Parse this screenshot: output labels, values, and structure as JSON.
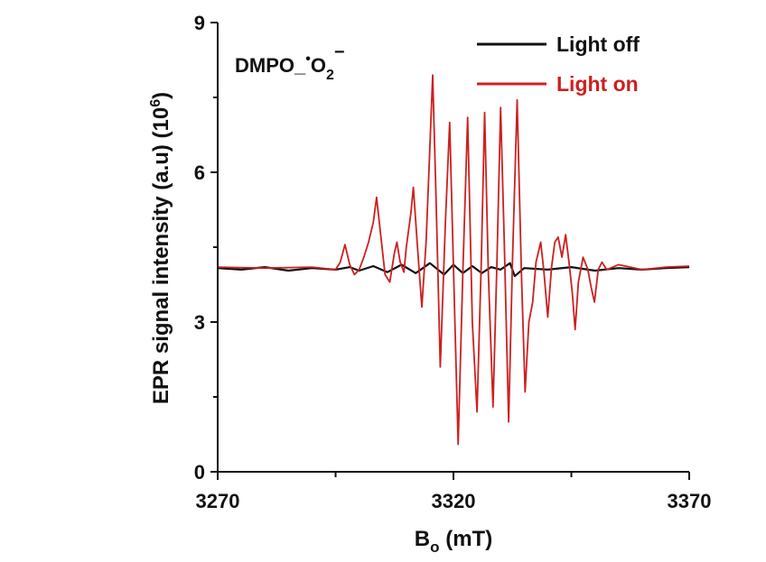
{
  "chart_data": {
    "type": "line",
    "annotation": {
      "text": "DMPO_",
      "radical": "•",
      "species": "O",
      "subscript": "2",
      "superscript": "−"
    },
    "xlabel": {
      "main": "B",
      "sub": "o",
      "unit": " (mT)"
    },
    "ylabel": {
      "main": "EPR signal intensity (a.u) (10",
      "sup": "6",
      "close": ")"
    },
    "xlim": [
      3270,
      3370
    ],
    "ylim": [
      0,
      9
    ],
    "xticks": [
      3270,
      3320,
      3370
    ],
    "yticks": [
      0,
      3,
      6,
      9
    ],
    "xtick_labels": [
      "3270",
      "3320",
      "3370"
    ],
    "ytick_labels": [
      "0",
      "3",
      "6",
      "9"
    ],
    "grid": false,
    "legend_position": "top-right",
    "series": [
      {
        "name": "Light off",
        "color": "#111111",
        "points": [
          [
            3270,
            4.08
          ],
          [
            3275,
            4.05
          ],
          [
            3280,
            4.1
          ],
          [
            3285,
            4.03
          ],
          [
            3290,
            4.08
          ],
          [
            3295,
            4.05
          ],
          [
            3298,
            4.1
          ],
          [
            3300,
            4.03
          ],
          [
            3303,
            4.12
          ],
          [
            3306,
            4.0
          ],
          [
            3309,
            4.15
          ],
          [
            3312,
            3.98
          ],
          [
            3315,
            4.18
          ],
          [
            3318,
            3.95
          ],
          [
            3320,
            4.15
          ],
          [
            3322,
            3.98
          ],
          [
            3324,
            4.12
          ],
          [
            3326,
            3.98
          ],
          [
            3328,
            4.1
          ],
          [
            3330,
            4.05
          ],
          [
            3332,
            4.18
          ],
          [
            3333,
            3.92
          ],
          [
            3335,
            4.08
          ],
          [
            3340,
            4.05
          ],
          [
            3345,
            4.1
          ],
          [
            3350,
            4.03
          ],
          [
            3355,
            4.08
          ],
          [
            3360,
            4.05
          ],
          [
            3365,
            4.08
          ],
          [
            3370,
            4.1
          ]
        ]
      },
      {
        "name": "Light on",
        "color": "#cc2020",
        "points": [
          [
            3270,
            4.1
          ],
          [
            3280,
            4.08
          ],
          [
            3290,
            4.1
          ],
          [
            3295,
            4.05
          ],
          [
            3296,
            4.2
          ],
          [
            3297,
            4.55
          ],
          [
            3298,
            4.15
          ],
          [
            3299,
            3.95
          ],
          [
            3300,
            4.05
          ],
          [
            3301,
            4.3
          ],
          [
            3302,
            4.6
          ],
          [
            3303,
            5.0
          ],
          [
            3303.7,
            5.5
          ],
          [
            3304.5,
            4.8
          ],
          [
            3305.5,
            3.95
          ],
          [
            3306.5,
            3.8
          ],
          [
            3307.5,
            4.4
          ],
          [
            3308,
            4.6
          ],
          [
            3308.7,
            4.2
          ],
          [
            3309.5,
            4.0
          ],
          [
            3310,
            4.5
          ],
          [
            3311,
            5.2
          ],
          [
            3311.5,
            5.7
          ],
          [
            3312.3,
            4.6
          ],
          [
            3313.3,
            3.3
          ],
          [
            3314.2,
            4.6
          ],
          [
            3315,
            6.5
          ],
          [
            3315.6,
            7.95
          ],
          [
            3316.3,
            5.5
          ],
          [
            3317.2,
            2.1
          ],
          [
            3318.3,
            5.0
          ],
          [
            3319.2,
            7.0
          ],
          [
            3320.3,
            3.0
          ],
          [
            3321,
            0.55
          ],
          [
            3322,
            4.0
          ],
          [
            3323,
            7.1
          ],
          [
            3324,
            3.0
          ],
          [
            3325,
            1.2
          ],
          [
            3325.9,
            4.2
          ],
          [
            3326.6,
            7.2
          ],
          [
            3327.4,
            4.0
          ],
          [
            3328.4,
            1.3
          ],
          [
            3329.2,
            4.1
          ],
          [
            3330,
            7.3
          ],
          [
            3330.8,
            4.5
          ],
          [
            3331.7,
            1.0
          ],
          [
            3332.5,
            4.2
          ],
          [
            3333.5,
            7.45
          ],
          [
            3334.4,
            4.0
          ],
          [
            3335.2,
            1.6
          ],
          [
            3336.0,
            3.0
          ],
          [
            3336.8,
            3.4
          ],
          [
            3337.5,
            4.2
          ],
          [
            3338.5,
            4.6
          ],
          [
            3339.2,
            4.0
          ],
          [
            3340.0,
            3.1
          ],
          [
            3340.8,
            4.1
          ],
          [
            3341.5,
            4.6
          ],
          [
            3342.2,
            4.7
          ],
          [
            3343.0,
            4.3
          ],
          [
            3343.8,
            4.75
          ],
          [
            3344.5,
            4.2
          ],
          [
            3345.2,
            3.6
          ],
          [
            3345.8,
            2.85
          ],
          [
            3346.5,
            3.8
          ],
          [
            3347.5,
            4.3
          ],
          [
            3348.5,
            4.05
          ],
          [
            3349.2,
            3.7
          ],
          [
            3349.9,
            3.4
          ],
          [
            3350.7,
            4.05
          ],
          [
            3351.5,
            4.2
          ],
          [
            3352.5,
            4.05
          ],
          [
            3355,
            4.15
          ],
          [
            3360,
            4.05
          ],
          [
            3365,
            4.1
          ],
          [
            3370,
            4.12
          ]
        ]
      }
    ]
  }
}
